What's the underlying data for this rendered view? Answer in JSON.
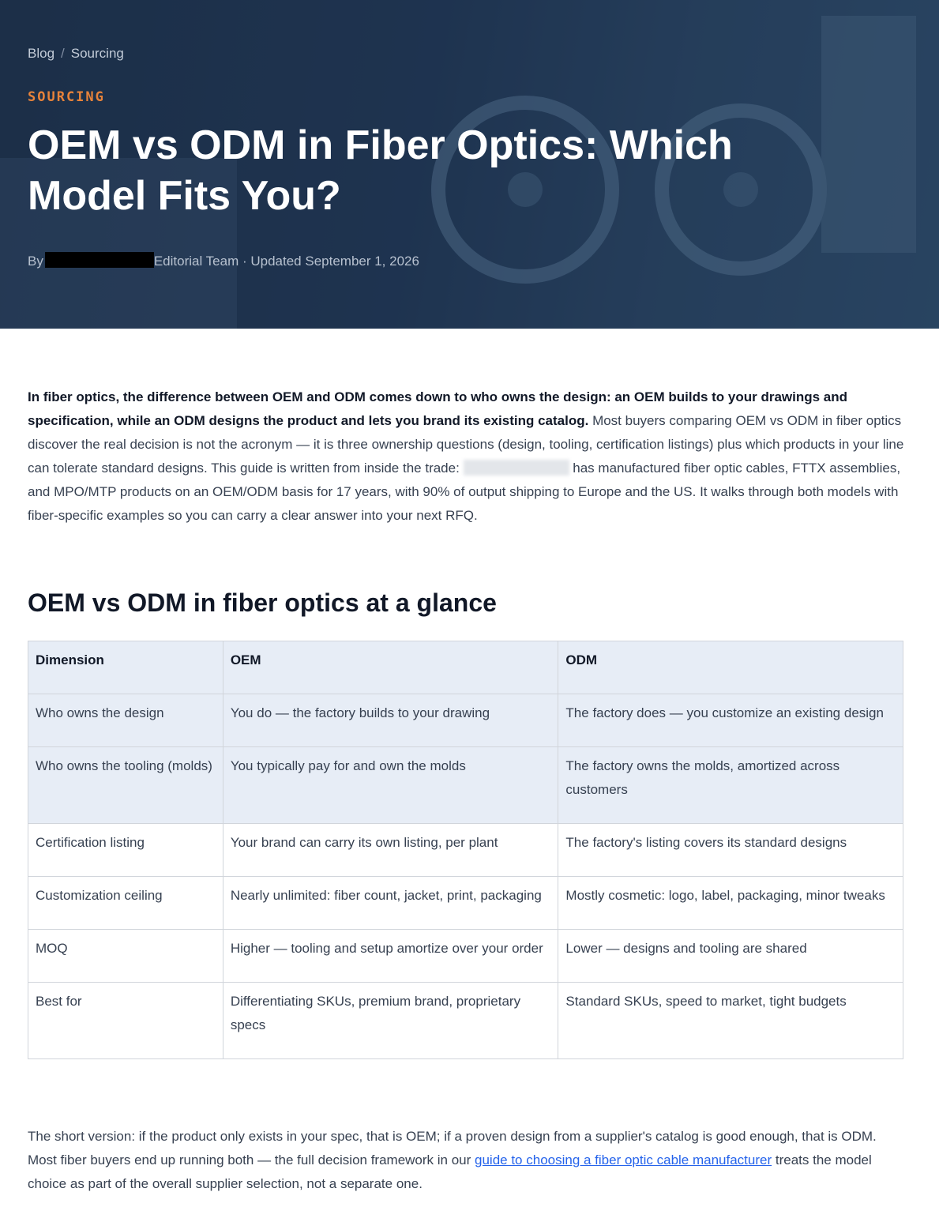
{
  "breadcrumb": {
    "items": [
      "Blog",
      "Sourcing"
    ],
    "separator": "/"
  },
  "category": "SOURCING",
  "title": "OEM vs ODM in Fiber Optics: Which Model Fits You?",
  "byline": {
    "prefix": "By",
    "rest": "Editorial Team · Updated September 1, 2026"
  },
  "intro": {
    "bold": "In fiber optics, the difference between OEM and ODM comes down to who owns the design: an OEM builds to your drawings and specification, while an ODM designs the product and lets you brand its existing catalog.",
    "text_1": " Most buyers comparing OEM vs ODM in fiber optics discover the real decision is not the acronym — it is three ownership questions (design, tooling, certification listings) plus which products in your line can tolerate standard designs. This guide is written from inside the trade: ",
    "text_2": " has manufactured fiber optic cables, FTTX assemblies, and MPO/MTP products on an OEM/ODM basis for 17 years, with 90% of output shipping to Europe and the US. It walks through both models with fiber-specific examples so you can carry a clear answer into your next RFQ."
  },
  "section_heading": "OEM vs ODM in fiber optics at a glance",
  "table": {
    "header": [
      "Dimension",
      "OEM",
      "ODM"
    ],
    "rows": [
      [
        "Who owns the design",
        "You do — the factory builds to your drawing",
        "The factory does — you customize an existing design"
      ],
      [
        "Who owns the tooling (molds)",
        "You typically pay for and own the molds",
        "The factory owns the molds, amortized across customers"
      ],
      [
        "Certification listing",
        "Your brand can carry its own listing, per plant",
        "The factory's listing covers its standard designs"
      ],
      [
        "Customization ceiling",
        "Nearly unlimited: fiber count, jacket, print, packaging",
        "Mostly cosmetic: logo, label, packaging, minor tweaks"
      ],
      [
        "MOQ",
        "Higher — tooling and setup amortize over your order",
        "Lower — designs and tooling are shared"
      ],
      [
        "Best for",
        "Differentiating SKUs, premium brand, proprietary specs",
        "Standard SKUs, speed to market, tight budgets"
      ]
    ]
  },
  "summary": {
    "text_1": "The short version: if the product only exists in your spec, that is OEM; if a proven design from a supplier's catalog is good enough, that is ODM. Most fiber buyers end up running both — the full decision framework in our ",
    "link": "guide to choosing a fiber optic cable manufacturer",
    "text_2": " treats the model choice as part of the overall supplier selection, not a separate one."
  }
}
